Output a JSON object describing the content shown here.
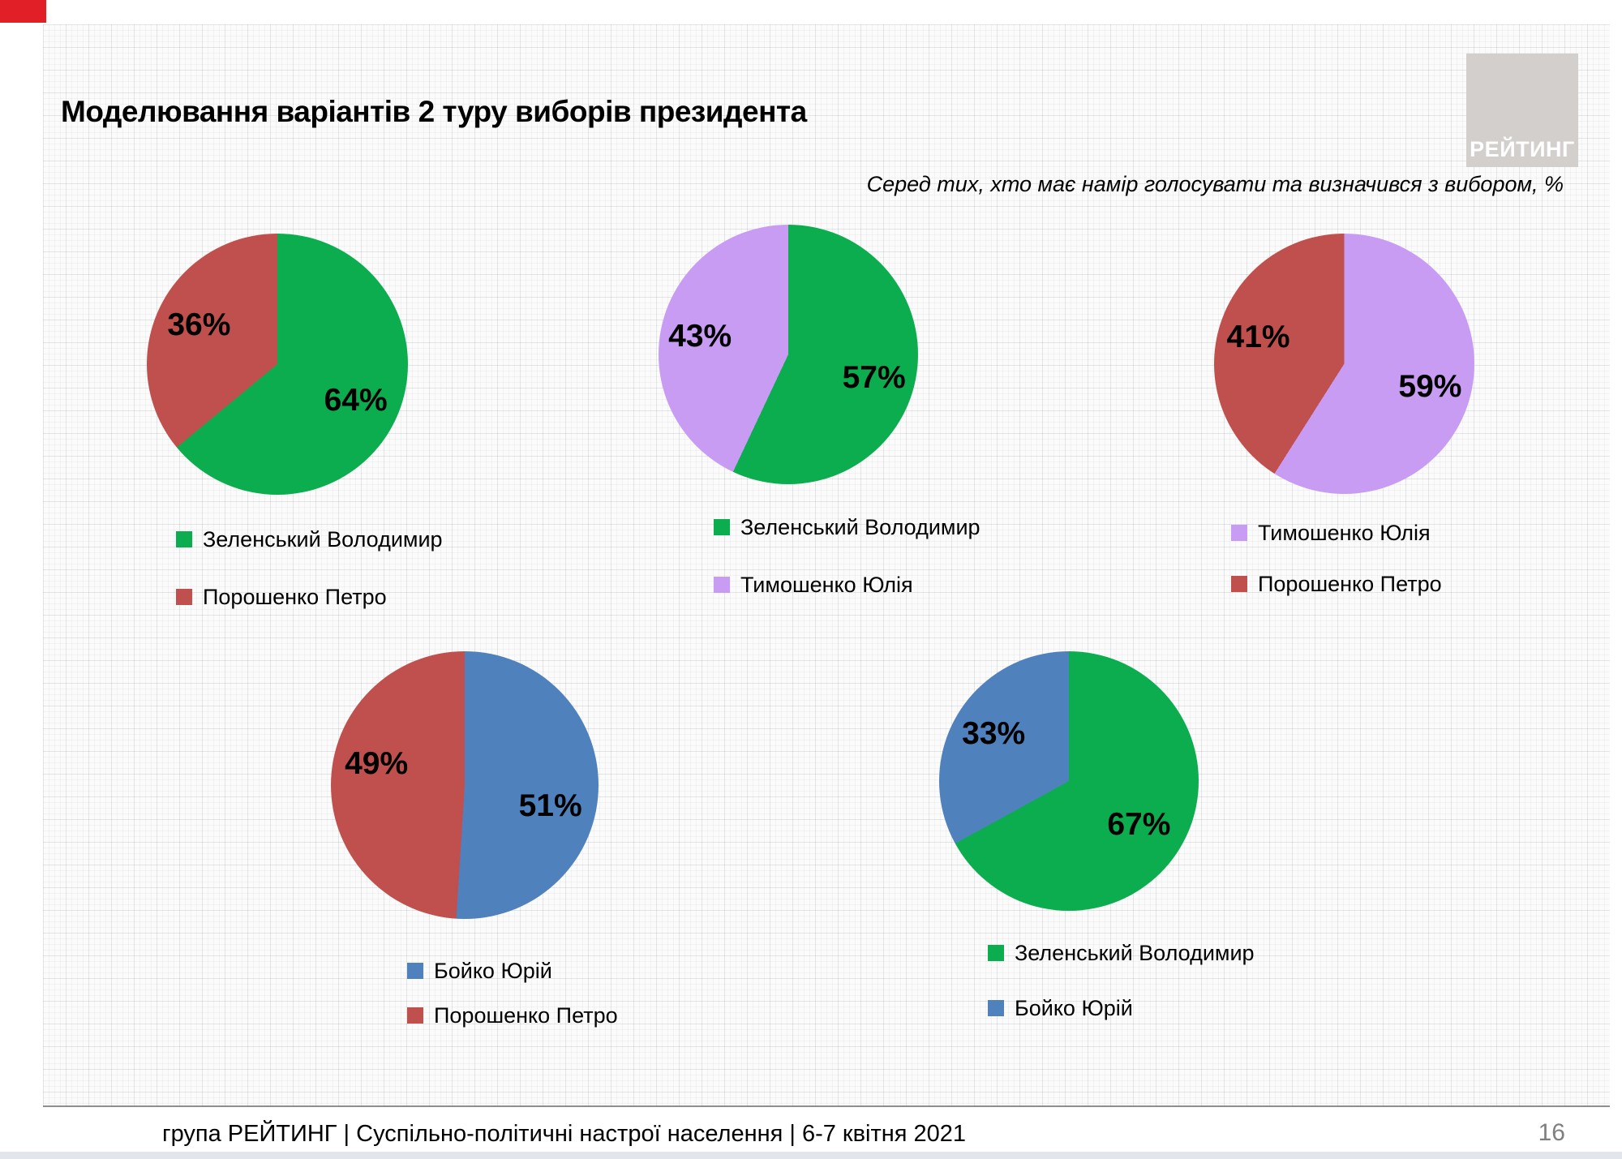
{
  "slide": {
    "title": "Моделювання варіантів 2 туру виборів президента",
    "subtitle": "Серед тих, хто має намір голосувати  та визначився з вибором, %",
    "footer": "група РЕЙТИНГ | Суспільно-політичні настрої населення | 6-7 квітня 2021",
    "page_number": "16",
    "logo_text": "РЕЙТИНГ"
  },
  "colors": {
    "zelenskyi_green": "#0CAD4E",
    "poroshenko_red": "#C0504D",
    "tymoshenko_purple": "#C89CF2",
    "boiko_blue": "#4F81BD",
    "logo_bg": "#D2CFCD",
    "accent_red": "#E01F26",
    "page_number_gray": "#7F7F7F"
  },
  "chart_data": [
    {
      "type": "pie",
      "start_angle_deg": 0,
      "direction": "clockwise",
      "legend_position": "bottom",
      "data_labels": "percent",
      "segments": [
        {
          "label": "Зеленський Володимир",
          "value": 64,
          "color": "#0CAD4E"
        },
        {
          "label": "Порошенко Петро",
          "value": 36,
          "color": "#C0504D"
        }
      ]
    },
    {
      "type": "pie",
      "start_angle_deg": 0,
      "direction": "clockwise",
      "legend_position": "bottom",
      "data_labels": "percent",
      "segments": [
        {
          "label": "Зеленський Володимир",
          "value": 57,
          "color": "#0CAD4E"
        },
        {
          "label": "Тимошенко Юлія",
          "value": 43,
          "color": "#C89CF2"
        }
      ]
    },
    {
      "type": "pie",
      "start_angle_deg": 0,
      "direction": "clockwise",
      "legend_position": "bottom",
      "data_labels": "percent",
      "segments": [
        {
          "label": "Тимошенко Юлія",
          "value": 59,
          "color": "#C89CF2"
        },
        {
          "label": "Порошенко Петро",
          "value": 41,
          "color": "#C0504D"
        }
      ]
    },
    {
      "type": "pie",
      "start_angle_deg": 0,
      "direction": "clockwise",
      "legend_position": "bottom",
      "data_labels": "percent",
      "segments": [
        {
          "label": "Бойко Юрій",
          "value": 51,
          "color": "#4F81BD"
        },
        {
          "label": "Порошенко Петро",
          "value": 49,
          "color": "#C0504D"
        }
      ]
    },
    {
      "type": "pie",
      "start_angle_deg": 0,
      "direction": "clockwise",
      "legend_position": "bottom",
      "data_labels": "percent",
      "segments": [
        {
          "label": "Зеленський Володимир",
          "value": 67,
          "color": "#0CAD4E"
        },
        {
          "label": "Бойко Юрій",
          "value": 33,
          "color": "#4F81BD"
        }
      ]
    }
  ]
}
